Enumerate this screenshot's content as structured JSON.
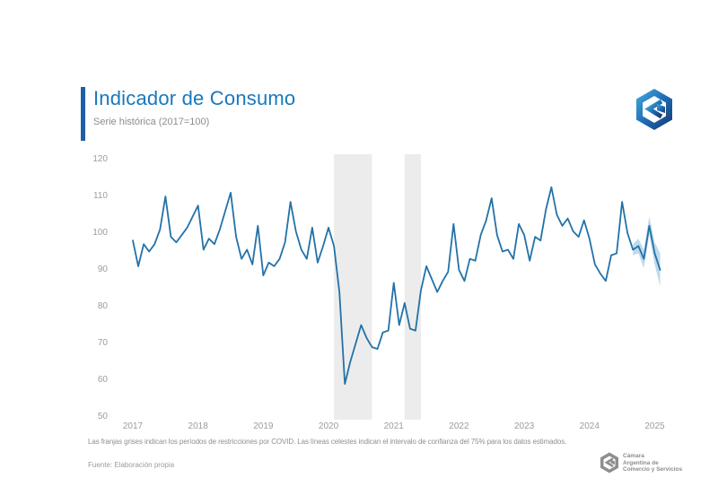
{
  "header": {
    "title": "Indicador de Consumo",
    "subtitle": "Serie histórica (2017=100)"
  },
  "footer": {
    "note": "Las franjas grises indican los períodos de restricciones por COVID. Las líneas celestes indican el intervalo de confianza del 75% para los datos estimados.",
    "source": "Fuente: Elaboración propia"
  },
  "branding": {
    "bottom_right": {
      "line1": "Cámara",
      "line2": "Argentina de",
      "line3": "Comercio y Servicios"
    }
  },
  "chart_data": {
    "type": "line",
    "title": "Indicador de Consumo",
    "subtitle": "Serie histórica (2017=100)",
    "start_month": "2017-01",
    "end_month": "2025-02",
    "x_tick_labels": [
      "2017",
      "2018",
      "2019",
      "2020",
      "2021",
      "2022",
      "2023",
      "2024",
      "2025"
    ],
    "y_ticks": [
      120,
      110,
      100,
      90,
      80,
      70,
      60,
      50
    ],
    "ylim": [
      50,
      120
    ],
    "grid": false,
    "legend": "none",
    "series": [
      {
        "name": "Indicador de Consumo (2017=100)",
        "values": [
          98,
          91,
          97,
          95,
          97,
          101,
          110,
          99,
          97.5,
          99.5,
          101.5,
          104.5,
          107.5,
          95.5,
          98.5,
          97,
          101,
          106,
          111,
          99,
          93,
          95.5,
          91.5,
          102,
          88.5,
          92,
          91,
          93,
          97.5,
          108.5,
          100.5,
          95.5,
          93,
          101.5,
          92,
          96.5,
          101.5,
          96.5,
          84,
          59,
          65,
          70,
          75,
          71.5,
          69,
          68.5,
          73,
          73.5,
          86.5,
          75,
          81,
          74,
          73.5,
          84.5,
          91,
          87.5,
          84,
          87,
          89.5,
          102.5,
          90,
          87,
          93,
          92.5,
          99.5,
          103.5,
          109.5,
          99.5,
          95,
          95.5,
          93,
          102.5,
          99.5,
          92.5,
          99,
          98,
          106.5,
          112.5,
          105,
          102,
          104,
          100.5,
          99,
          103.5,
          98.5,
          91.5,
          89,
          87,
          94,
          94.5,
          108.5,
          100,
          95.5,
          96.5,
          93,
          102,
          94.5,
          90
        ]
      }
    ],
    "covid_bands": [
      {
        "start": "2020-02",
        "end": "2020-09"
      },
      {
        "start": "2021-03",
        "end": "2021-06"
      }
    ],
    "confidence_band": {
      "label": "Intervalo de confianza del 75% para los datos estimados",
      "start": "2024-09",
      "upper": [
        97,
        98.5,
        95.5,
        104.5,
        97.5,
        94.5
      ],
      "lower": [
        94,
        94.5,
        90.5,
        99.5,
        91.5,
        85.5
      ]
    },
    "colors": {
      "line": "#2272a8",
      "confidence": "#aecfe9",
      "covid_band": "#ececec",
      "accent": "#1878be",
      "axis_text": "#9c9c9c"
    }
  }
}
